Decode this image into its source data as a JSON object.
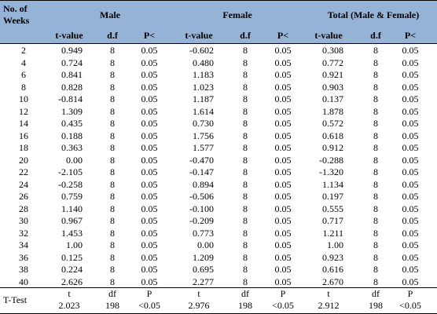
{
  "header": {
    "weeks_label": "No. of Weeks",
    "groups": [
      "Male",
      "Female",
      "Total (Male & Female)"
    ],
    "subheaders": [
      "t-value",
      "d.f",
      "P<",
      "t-value",
      "d.f",
      "P<",
      "t-value",
      "d.f",
      "P<"
    ]
  },
  "rows": [
    [
      "2",
      "0.949",
      "8",
      "0.05",
      "-0.602",
      "8",
      "0.05",
      "0.308",
      "8",
      "0.05"
    ],
    [
      "4",
      "0.724",
      "8",
      "0.05",
      "0.480",
      "8",
      "0.05",
      "0.772",
      "8",
      "0.05"
    ],
    [
      "6",
      "0.841",
      "8",
      "0.05",
      "1.183",
      "8",
      "0.05",
      "0.921",
      "8",
      "0.05"
    ],
    [
      "8",
      "0.828",
      "8",
      "0.05",
      "1.023",
      "8",
      "0.05",
      "0.903",
      "8",
      "0.05"
    ],
    [
      "10",
      "-0.814",
      "8",
      "0.05",
      "1.187",
      "8",
      "0.05",
      "0.137",
      "8",
      "0.05"
    ],
    [
      "12",
      "1.309",
      "8",
      "0.05",
      "1.614",
      "8",
      "0.05",
      "1.878",
      "8",
      "0.05"
    ],
    [
      "14",
      "0.435",
      "8",
      "0.05",
      "0.730",
      "8",
      "0.05",
      "0.572",
      "8",
      "0.05"
    ],
    [
      "16",
      "0.188",
      "8",
      "0.05",
      "1.756",
      "8",
      "0.05",
      "0.618",
      "8",
      "0.05"
    ],
    [
      "18",
      "0.363",
      "8",
      "0.05",
      "1.577",
      "8",
      "0.05",
      "0.912",
      "8",
      "0.05"
    ],
    [
      "20",
      "0.00",
      "8",
      "0.05",
      "-0.470",
      "8",
      "0.05",
      "-0.288",
      "8",
      "0.05"
    ],
    [
      "22",
      "-2.105",
      "8",
      "0.05",
      "-0.147",
      "8",
      "0.05",
      "-1.320",
      "8",
      "0.05"
    ],
    [
      "24",
      "-0.258",
      "8",
      "0.05",
      "0.894",
      "8",
      "0.05",
      "1.134",
      "8",
      "0.05"
    ],
    [
      "26",
      "0.759",
      "8",
      "0.05",
      "-0.506",
      "8",
      "0.05",
      "0.197",
      "8",
      "0.05"
    ],
    [
      "28",
      "1.140",
      "8",
      "0.05",
      "-0.100",
      "8",
      "0.05",
      "0.555",
      "8",
      "0.05"
    ],
    [
      "30",
      "0.967",
      "8",
      "0.05",
      "-0.209",
      "8",
      "0.05",
      "0.717",
      "8",
      "0.05"
    ],
    [
      "32",
      "1.453",
      "8",
      "0.05",
      "0.773",
      "8",
      "0.05",
      "1.211",
      "8",
      "0.05"
    ],
    [
      "34",
      "1.00",
      "8",
      "0.05",
      "0.00",
      "8",
      "0.05",
      "1.00",
      "8",
      "0.05"
    ],
    [
      "36",
      "0.125",
      "8",
      "0.05",
      "1.209",
      "8",
      "0.05",
      "0.923",
      "8",
      "0.05"
    ],
    [
      "38",
      "0.224",
      "8",
      "0.05",
      "0.695",
      "8",
      "0.05",
      "0.616",
      "8",
      "0.05"
    ],
    [
      "40",
      "2.626",
      "8",
      "0.05",
      "2.277",
      "8",
      "0.05",
      "2.670",
      "8",
      "0.05"
    ]
  ],
  "footer": {
    "label": "T-Test",
    "cells": [
      [
        "t",
        "2.023"
      ],
      [
        "df",
        "198"
      ],
      [
        "P",
        "<0.05"
      ],
      [
        "t",
        "2.976"
      ],
      [
        "df",
        "198"
      ],
      [
        "P",
        "<0.05"
      ],
      [
        "t",
        "2.912"
      ],
      [
        "df",
        "198"
      ],
      [
        "P",
        "<0.05"
      ]
    ]
  }
}
